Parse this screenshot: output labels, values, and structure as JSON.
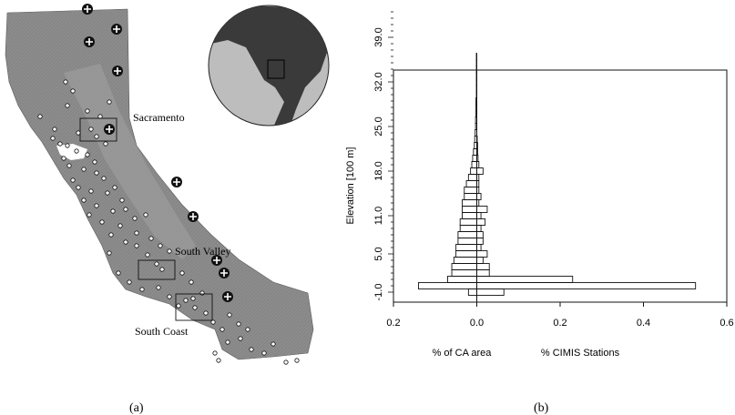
{
  "panel_a": {
    "caption": "(a)",
    "regions": [
      "Sacramento",
      "South Valley",
      "South Coast"
    ]
  },
  "panel_b": {
    "caption": "(b)",
    "xlabel_left": "% of CA area",
    "xlabel_right": "% CIMIS Stations"
  },
  "colors": {
    "land": "#8c8c8c",
    "ocean_globe": "#bdbdbd",
    "land_globe": "#3a3a3a"
  },
  "chart_data": {
    "type": "bar",
    "orientation": "horizontal",
    "title": "",
    "ylabel": "Elevation [100 m]",
    "xlabel": "",
    "xlim": [
      -0.2,
      0.6
    ],
    "x_ticks": [
      -0.2,
      0.0,
      0.2,
      0.4,
      0.6
    ],
    "x_tick_labels": [
      "0.2",
      "0.0",
      "0.2",
      "0.4",
      "0.6"
    ],
    "y_ticks": [
      -1.0,
      5.0,
      11.0,
      18.0,
      25.0,
      32.0,
      39.0
    ],
    "y_tick_labels": [
      "-1.0",
      "5.0",
      "11.0",
      "18.0",
      "25.0",
      "32.0",
      "39.0"
    ],
    "ylim": [
      -2.5,
      44
    ],
    "elevation_bins": [
      -1,
      0,
      1,
      2,
      3,
      4,
      5,
      6,
      7,
      8,
      9,
      10,
      11,
      12,
      13,
      14,
      15,
      16,
      17,
      18,
      19,
      20,
      21,
      22,
      23,
      24,
      25,
      26,
      27,
      28,
      29,
      30,
      31,
      32,
      33,
      34,
      35,
      36,
      37,
      38,
      39,
      40,
      41,
      42,
      43
    ],
    "series": [
      {
        "name": "% of CA area",
        "values": [
          -0.02,
          -0.14,
          -0.07,
          -0.06,
          -0.06,
          -0.055,
          -0.05,
          -0.05,
          -0.045,
          -0.045,
          -0.04,
          -0.04,
          -0.035,
          -0.035,
          -0.035,
          -0.03,
          -0.03,
          -0.025,
          -0.02,
          -0.015,
          -0.012,
          -0.01,
          -0.008,
          -0.006,
          -0.005,
          -0.004,
          -0.003,
          -0.003,
          -0.002,
          -0.002,
          -0.002,
          -0.001,
          -0.001,
          -0.001,
          -0.001,
          -0.001,
          -0.001,
          -0.001,
          0,
          0,
          0,
          0,
          0,
          0,
          0
        ]
      },
      {
        "name": "% CIMIS Stations",
        "values": [
          0.065,
          0.525,
          0.23,
          0.03,
          0.03,
          0.015,
          0.025,
          0.01,
          0.015,
          0.015,
          0.01,
          0.02,
          0.01,
          0.025,
          0.005,
          0.01,
          0.005,
          0.005,
          0.005,
          0.015,
          0.005,
          0.003,
          0.002,
          0.002,
          0.001,
          0,
          0,
          0,
          0,
          0,
          0,
          0,
          0,
          0,
          0,
          0,
          0,
          0,
          0,
          0,
          0,
          0,
          0,
          0,
          0
        ]
      }
    ]
  }
}
